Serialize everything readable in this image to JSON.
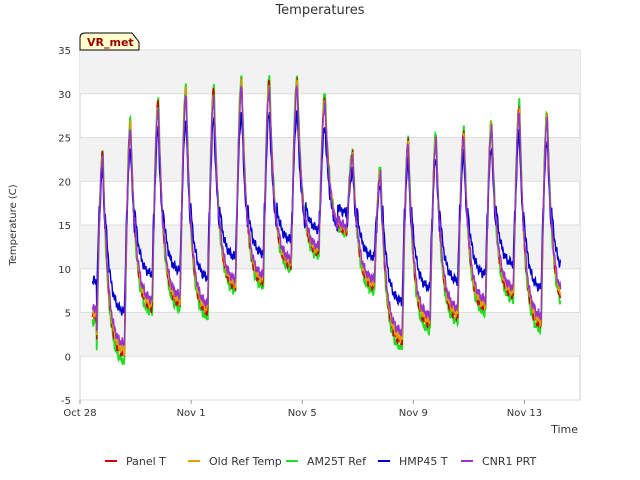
{
  "chart_data": {
    "type": "line",
    "title": "Temperatures",
    "xlabel": "Time",
    "ylabel": "Temperature (C)",
    "station_badge": "VR_met",
    "xlim": [
      0,
      18
    ],
    "ylim": [
      -5,
      35
    ],
    "y_ticks": [
      -5,
      0,
      5,
      10,
      15,
      20,
      25,
      30,
      35
    ],
    "x_ticks": [
      {
        "x": 0,
        "label": "Oct 28"
      },
      {
        "x": 4,
        "label": "Nov 1"
      },
      {
        "x": 8,
        "label": "Nov 5"
      },
      {
        "x": 12,
        "label": "Nov 9"
      },
      {
        "x": 16,
        "label": "Nov 13"
      }
    ],
    "grid": true,
    "legend_position": "bottom",
    "days": [
      {
        "start": 0.6,
        "max": 23.5,
        "min": 1.0
      },
      {
        "start": 1.6,
        "max": 27.0,
        "min": -0.5
      },
      {
        "start": 2.6,
        "max": 29.5,
        "min": 5.0
      },
      {
        "start": 3.6,
        "max": 31.0,
        "min": 5.5
      },
      {
        "start": 4.6,
        "max": 31.0,
        "min": 4.5
      },
      {
        "start": 5.6,
        "max": 32.0,
        "min": 7.5
      },
      {
        "start": 6.6,
        "max": 32.0,
        "min": 8.0
      },
      {
        "start": 7.6,
        "max": 32.0,
        "min": 10.0
      },
      {
        "start": 8.6,
        "max": 30.0,
        "min": 11.5
      },
      {
        "start": 9.6,
        "max": 23.5,
        "min": 14.0
      },
      {
        "start": 10.6,
        "max": 21.5,
        "min": 7.5
      },
      {
        "start": 11.6,
        "max": 25.0,
        "min": 1.0
      },
      {
        "start": 12.6,
        "max": 25.5,
        "min": 3.0
      },
      {
        "start": 13.6,
        "max": 26.0,
        "min": 4.0
      },
      {
        "start": 14.6,
        "max": 27.0,
        "min": 5.0
      },
      {
        "start": 15.6,
        "max": 29.0,
        "min": 6.5
      },
      {
        "start": 16.6,
        "max": 28.0,
        "min": 3.0
      },
      {
        "start": 17.6,
        "max": 27.5,
        "min": 5.0
      }
    ],
    "x_end": 17.3,
    "series": [
      {
        "name": "Panel T",
        "color": "#cc0000",
        "amp": 0.97,
        "offset": 0.3
      },
      {
        "name": "Old Ref Temp",
        "color": "#e69f00",
        "amp": 0.96,
        "offset": 0.5
      },
      {
        "name": "AM25T Ref",
        "color": "#22dd22",
        "amp": 1.0,
        "offset": 0.0
      },
      {
        "name": "HMP45 T",
        "color": "#0000cc",
        "amp": 0.78,
        "offset": 2.2
      },
      {
        "name": "CNR1 PRT",
        "color": "#9933cc",
        "amp": 0.93,
        "offset": 0.8
      }
    ]
  }
}
